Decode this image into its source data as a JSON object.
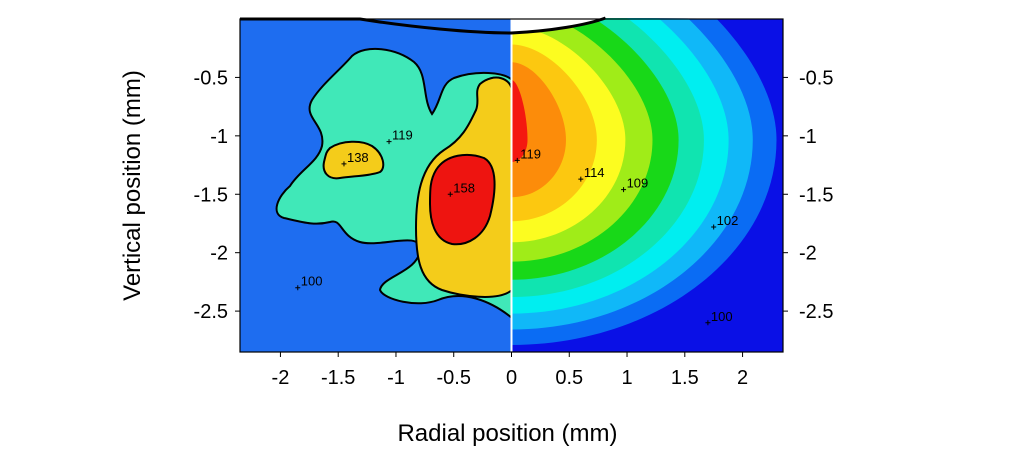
{
  "chart_data": {
    "type": "heatmap",
    "xlabel": "Radial position (mm)",
    "ylabel": "Vertical position (mm)",
    "xlim": [
      -2.35,
      2.35
    ],
    "ylim": [
      -2.85,
      0.0
    ],
    "x_ticks": [
      {
        "value": -2,
        "label": "-2"
      },
      {
        "value": -1.5,
        "label": "-1.5"
      },
      {
        "value": -1,
        "label": "-1"
      },
      {
        "value": -0.5,
        "label": "-0.5"
      },
      {
        "value": 0,
        "label": "0"
      },
      {
        "value": 0.5,
        "label": "0.5"
      },
      {
        "value": 1,
        "label": "1"
      },
      {
        "value": 1.5,
        "label": "1.5"
      },
      {
        "value": 2,
        "label": "2"
      }
    ],
    "y_ticks": [
      {
        "value": -0.5,
        "label": "-0.5"
      },
      {
        "value": -1,
        "label": "-1"
      },
      {
        "value": -1.5,
        "label": "-1.5"
      },
      {
        "value": -2,
        "label": "-2"
      },
      {
        "value": -2.5,
        "label": "-2.5"
      }
    ],
    "y_axis_sides": "both",
    "grid": false,
    "halves": [
      {
        "side": "left",
        "levels": [
          {
            "color": "#1e6df0"
          },
          {
            "color": "#40e8b8"
          },
          {
            "color": "#f4cc1a"
          },
          {
            "color": "#ee1410"
          }
        ]
      },
      {
        "side": "right",
        "levels": [
          {
            "color": "#0a10e6"
          },
          {
            "color": "#0a6cf4"
          },
          {
            "color": "#10b8f8"
          },
          {
            "color": "#00eef0"
          },
          {
            "color": "#10e4b0"
          },
          {
            "color": "#18d818"
          },
          {
            "color": "#a0ec18"
          },
          {
            "color": "#fcfc20"
          },
          {
            "color": "#fcc810"
          },
          {
            "color": "#fc8c0a"
          },
          {
            "color": "#f41810"
          }
        ]
      }
    ],
    "points": [
      {
        "x": -1.85,
        "y": -2.3,
        "label": "100"
      },
      {
        "x": -1.45,
        "y": -1.24,
        "label": "138"
      },
      {
        "x": -1.06,
        "y": -1.05,
        "label": "119"
      },
      {
        "x": -0.53,
        "y": -1.5,
        "label": "158"
      },
      {
        "x": 0.05,
        "y": -1.21,
        "label": "119"
      },
      {
        "x": 0.6,
        "y": -1.37,
        "label": "114"
      },
      {
        "x": 0.97,
        "y": -1.46,
        "label": "109"
      },
      {
        "x": 1.75,
        "y": -1.78,
        "label": "102"
      },
      {
        "x": 1.7,
        "y": -2.6,
        "label": "100"
      }
    ]
  }
}
